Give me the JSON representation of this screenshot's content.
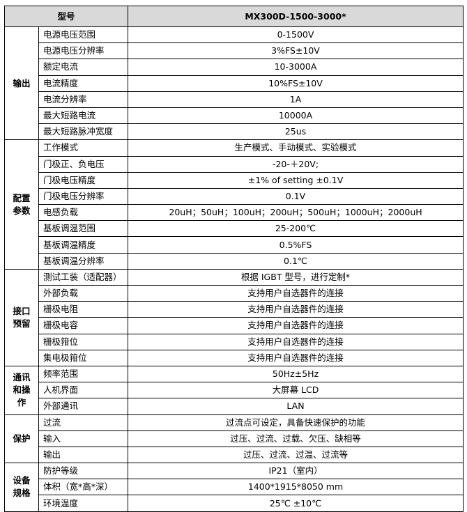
{
  "header": {
    "label": "型号",
    "model": "MX300D-1500-3000*"
  },
  "groups": [
    {
      "name": "输出",
      "rows": [
        [
          "电源电压范围",
          "0-1500V"
        ],
        [
          "电源电压分辨率",
          "3%FS±10V"
        ],
        [
          "额定电流",
          "10-3000A"
        ],
        [
          "电流精度",
          "10%FS±10V"
        ],
        [
          "电流分辨率",
          "1A"
        ],
        [
          "最大短路电流",
          "10000A"
        ],
        [
          "最大短路脉冲宽度",
          "25us"
        ]
      ]
    },
    {
      "name": "配置参数",
      "rows": [
        [
          "工作模式",
          "生产模式、手动模式、实验模式"
        ],
        [
          "门极正、负电压",
          "-20-＋20V;"
        ],
        [
          "门极电压精度",
          "±1% of setting ±0.1V"
        ],
        [
          "门极电压分辨率",
          "0.1V"
        ],
        [
          "电感负载",
          "20uH；50uH；100uH；200uH；500uH；1000uH；2000uH"
        ],
        [
          "基板调温范围",
          "25-200℃"
        ],
        [
          "基板调温精度",
          "0.5%FS"
        ],
        [
          "基板调温分辨率",
          "0.1℃"
        ]
      ]
    },
    {
      "name": "接口预留",
      "rows": [
        [
          "测试工装（适配器）",
          "根据 IGBT 型号，进行定制*"
        ],
        [
          "外部负载",
          "支持用户自选器件的连接"
        ],
        [
          "栅极电阻",
          "支持用户自选器件的连接"
        ],
        [
          "栅极电容",
          "支持用户自选器件的连接"
        ],
        [
          "栅极箝位",
          "支持用户自选器件的连接"
        ],
        [
          "集电极箝位",
          "支持用户自选器件的连接"
        ]
      ]
    },
    {
      "name": "通讯和操作",
      "rows": [
        [
          "频率范围",
          "50Hz±5Hz"
        ],
        [
          "人机界面",
          "大屏幕 LCD"
        ],
        [
          "外部通讯",
          "LAN"
        ]
      ]
    },
    {
      "name": "保护",
      "rows": [
        [
          "过流",
          "过流点可设定，具备快速保护的功能"
        ],
        [
          "输入",
          "过压、过流、过载、欠压、缺相等"
        ],
        [
          "输出",
          "过压、过流、过温、过流等"
        ]
      ]
    },
    {
      "name": "设备规格",
      "rows": [
        [
          "防护等级",
          "IP21（室内）"
        ],
        [
          "体积（宽*高*深）",
          "1400*1915*8050 mm"
        ],
        [
          "环境温度",
          "25℃ ±10℃"
        ]
      ]
    }
  ]
}
